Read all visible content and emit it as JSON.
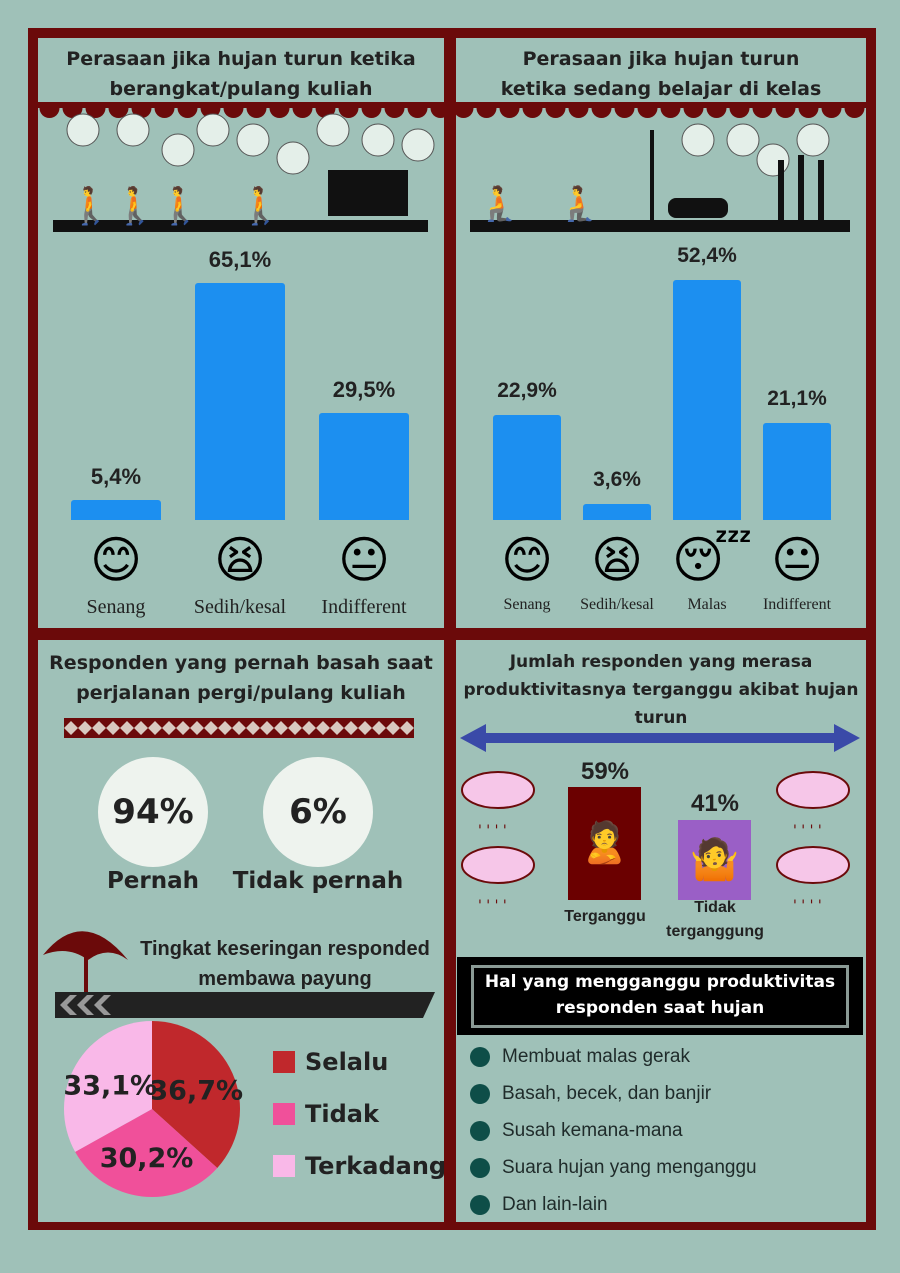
{
  "panel1": {
    "title_line1": "Perasaan jika hujan turun ketika",
    "title_line2": "berangkat/pulang kuliah"
  },
  "panel2": {
    "title_line1": "Perasaan jika hujan turun",
    "title_line2": "ketika sedang belajar di kelas"
  },
  "panel3": {
    "title_line1": "Responden yang pernah basah saat",
    "title_line2": "perjalanan pergi/pulang kuliah",
    "stat1_value": "94%",
    "stat1_label": "Pernah",
    "stat2_value": "6%",
    "stat2_label": "Tidak pernah",
    "subtitle_line1": "Tingkat keseringan responded",
    "subtitle_line2": "membawa payung"
  },
  "panel4": {
    "title_line1": "Jumlah responden yang merasa",
    "title_line2": "produktivitasnya terganggu akibat hujan",
    "title_line3": "turun",
    "stat1_value": "59%",
    "stat1_label": "Terganggu",
    "stat2_value": "41%",
    "stat2_label_line1": "Tidak",
    "stat2_label_line2": "terganggung",
    "list_title_line1": "Hal yang mengganggu produktivitas",
    "list_title_line2": "responden saat hujan",
    "list": [
      "Membuat malas gerak",
      "Basah, becek, dan banjir",
      "Susah kemana-mana",
      "Suara hujan yang menganggu",
      "Dan lain-lain"
    ]
  },
  "colors": {
    "background": "#9fc1b8",
    "frame": "#6b0a0a",
    "bar": "#1c8ff0",
    "terganggu": "#6b0000",
    "tidak_terganggu": "#9a5fc6"
  },
  "chart_data": [
    {
      "type": "bar",
      "title": "Perasaan jika hujan turun ketika berangkat/pulang kuliah",
      "categories": [
        "Senang",
        "Sedih/kesal",
        "Indifferent"
      ],
      "values": [
        5.4,
        65.1,
        29.5
      ],
      "labels": [
        "5,4%",
        "65,1%",
        "29,5%"
      ],
      "icons": [
        "smiley-icon",
        "crying-icon",
        "neutral-face-icon"
      ]
    },
    {
      "type": "bar",
      "title": "Perasaan jika hujan turun ketika sedang belajar di kelas",
      "categories": [
        "Senang",
        "Sedih/kesal",
        "Malas",
        "Indifferent"
      ],
      "values": [
        22.9,
        3.6,
        52.4,
        21.1
      ],
      "labels": [
        "22,9%",
        "3,6%",
        "52,4%",
        "21,1%"
      ],
      "icons": [
        "smiley-icon",
        "crying-icon",
        "sleepy-icon",
        "neutral-face-icon"
      ]
    },
    {
      "type": "pie",
      "title": "Tingkat keseringan responded membawa payung",
      "categories": [
        "Selalu",
        "Tidak",
        "Terkadang"
      ],
      "values": [
        36.7,
        30.2,
        33.1
      ],
      "labels": [
        "36,7%",
        "30,2%",
        "33,1%"
      ],
      "colors": [
        "#c0282c",
        "#f0509a",
        "#f9b8e8"
      ],
      "legend": "right"
    }
  ]
}
